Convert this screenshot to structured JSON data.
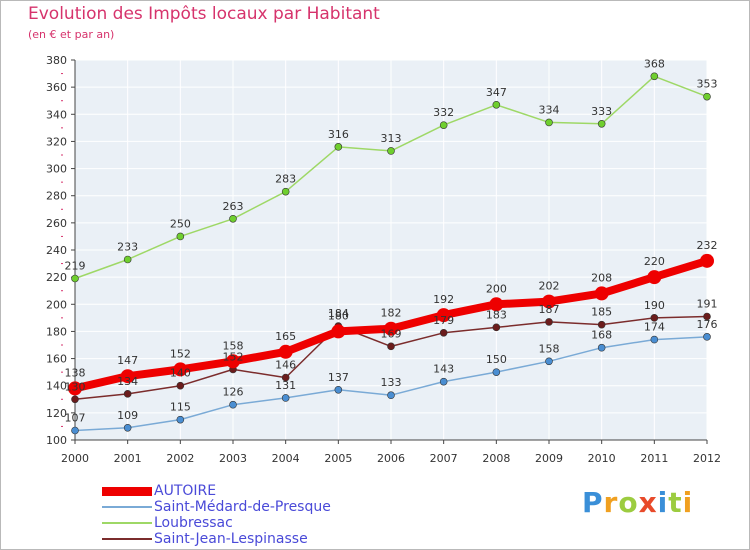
{
  "header": {
    "title": "Evolution des Impôts locaux par Habitant",
    "subtitle": "(en € et par an)"
  },
  "legend": {
    "items": [
      "AUTOIRE",
      "Saint-Médard-de-Presque",
      "Loubressac",
      "Saint-Jean-Lespinasse"
    ]
  },
  "logo": {
    "text": "Proxiti",
    "letters": [
      "P",
      "r",
      "o",
      "x",
      "i",
      "t",
      "i"
    ]
  },
  "chart_data": {
    "type": "line",
    "title": "Evolution des Impôts locaux par Habitant",
    "subtitle": "(en € et par an)",
    "x": [
      2000,
      2001,
      2002,
      2003,
      2004,
      2005,
      2006,
      2007,
      2008,
      2009,
      2010,
      2011,
      2012
    ],
    "ylim": [
      100,
      380
    ],
    "yticks": [
      100,
      120,
      140,
      160,
      180,
      200,
      220,
      240,
      260,
      280,
      300,
      320,
      340,
      360,
      380
    ],
    "grid": true,
    "legend_position": "bottom-left",
    "series": [
      {
        "name": "AUTOIRE",
        "color": "#ee0000",
        "values": [
          138,
          147,
          152,
          158,
          165,
          180,
          182,
          192,
          200,
          202,
          208,
          220,
          232
        ]
      },
      {
        "name": "Saint-Médard-de-Presque",
        "color": "#7aaad6",
        "values": [
          107,
          109,
          115,
          126,
          131,
          137,
          133,
          143,
          150,
          158,
          168,
          174,
          176
        ]
      },
      {
        "name": "Loubressac",
        "color": "#9ed866",
        "values": [
          219,
          233,
          250,
          263,
          283,
          316,
          313,
          332,
          347,
          334,
          333,
          368,
          353
        ]
      },
      {
        "name": "Saint-Jean-Lespinasse",
        "color": "#7b2c2c",
        "values": [
          130,
          134,
          140,
          152,
          146,
          184,
          169,
          179,
          183,
          187,
          185,
          190,
          191
        ]
      }
    ]
  }
}
